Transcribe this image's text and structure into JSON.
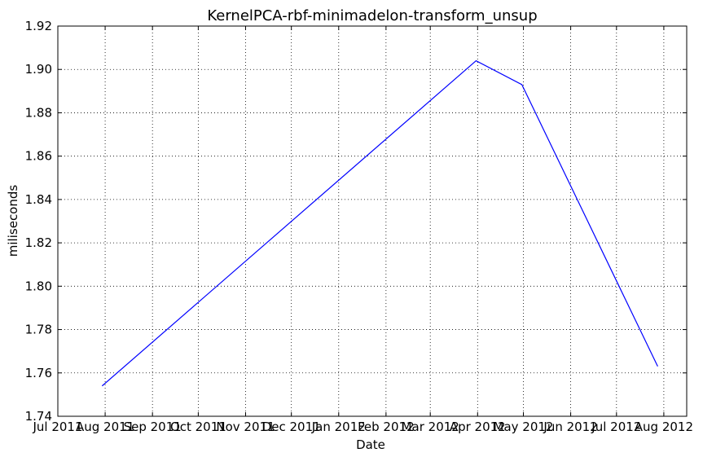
{
  "chart_data": {
    "type": "line",
    "title": "KernelPCA-rbf-minimadelon-transform_unsup",
    "xlabel": "Date",
    "ylabel": "miliseconds",
    "ylim": [
      1.74,
      1.92
    ],
    "xlim": [
      "2011-07-01",
      "2012-08-16"
    ],
    "grid": true,
    "y_ticks": [
      "1.74",
      "1.76",
      "1.78",
      "1.80",
      "1.82",
      "1.84",
      "1.86",
      "1.88",
      "1.90",
      "1.92"
    ],
    "x_ticks": [
      {
        "date": "2011-07-01",
        "label": "Jul 2011"
      },
      {
        "date": "2011-08-01",
        "label": "Aug 2011"
      },
      {
        "date": "2011-09-01",
        "label": "Sep 2011"
      },
      {
        "date": "2011-10-01",
        "label": "Oct 2011"
      },
      {
        "date": "2011-11-01",
        "label": "Nov 2011"
      },
      {
        "date": "2011-12-01",
        "label": "Dec 2011"
      },
      {
        "date": "2012-01-01",
        "label": "Jan 2012"
      },
      {
        "date": "2012-02-01",
        "label": "Feb 2012"
      },
      {
        "date": "2012-03-01",
        "label": "Mar 2012"
      },
      {
        "date": "2012-04-01",
        "label": "Apr 2012"
      },
      {
        "date": "2012-05-01",
        "label": "May 2012"
      },
      {
        "date": "2012-06-01",
        "label": "Jun 2012"
      },
      {
        "date": "2012-07-01",
        "label": "Jul 2012"
      },
      {
        "date": "2012-08-01",
        "label": "Aug 2012"
      }
    ],
    "series": [
      {
        "color": "#0000ff",
        "x": [
          "2011-07-30",
          "2012-03-31",
          "2012-04-30",
          "2012-07-28"
        ],
        "y": [
          1.754,
          1.904,
          1.893,
          1.763
        ]
      }
    ]
  }
}
